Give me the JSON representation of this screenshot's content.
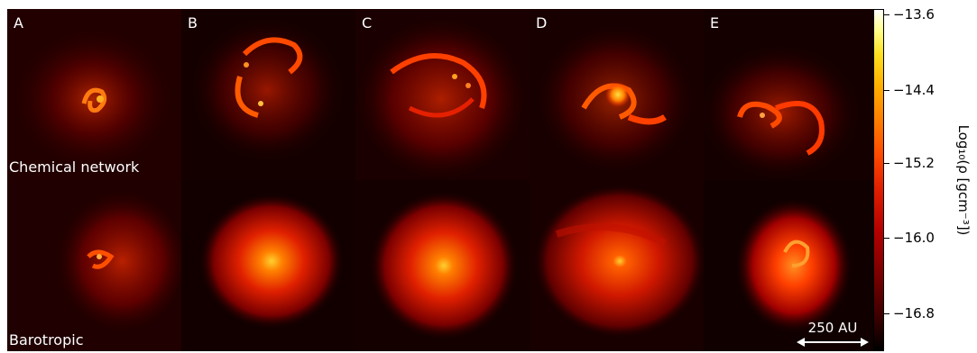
{
  "panels": {
    "labels": [
      "A",
      "B",
      "C",
      "D",
      "E"
    ]
  },
  "rows": {
    "top_label": "Chemical network",
    "bottom_label": "Barotropic"
  },
  "scalebar": {
    "label": "250 AU"
  },
  "colorbar": {
    "title": "Log₁₀(ρ [gcm⁻³])",
    "ticks": [
      "−13.6",
      "−14.4",
      "−15.2",
      "−16.0",
      "−16.8"
    ],
    "colormap": "hot",
    "colors": [
      "#000000",
      "#7a0000",
      "#e32100",
      "#ff8000",
      "#ffe020",
      "#ffffff"
    ]
  }
}
